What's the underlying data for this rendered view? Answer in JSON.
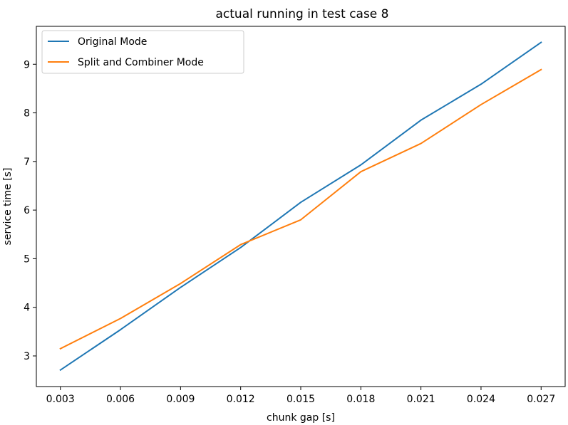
{
  "chart_data": {
    "type": "line",
    "title": "actual running in test case 8",
    "xlabel": "chunk gap [s]",
    "ylabel": "service time [s]",
    "x": [
      0.003,
      0.006,
      0.009,
      0.012,
      0.015,
      0.018,
      0.021,
      0.024,
      0.027
    ],
    "x_tick_labels": [
      "0.003",
      "0.006",
      "0.009",
      "0.012",
      "0.015",
      "0.018",
      "0.021",
      "0.024",
      "0.027"
    ],
    "y_ticks": [
      3,
      4,
      5,
      6,
      7,
      8,
      9
    ],
    "xlim": [
      0.0018,
      0.0282
    ],
    "ylim": [
      2.37,
      9.78
    ],
    "grid": false,
    "legend_position": "upper-left",
    "series": [
      {
        "name": "Original Mode",
        "color": "#1f77b4",
        "values": [
          2.71,
          3.54,
          4.41,
          5.23,
          6.16,
          6.93,
          7.85,
          8.59,
          9.45
        ]
      },
      {
        "name": "Split and Combiner Mode",
        "color": "#ff7f0e",
        "values": [
          3.15,
          3.77,
          4.49,
          5.29,
          5.8,
          6.79,
          7.37,
          8.17,
          8.89
        ]
      }
    ]
  }
}
